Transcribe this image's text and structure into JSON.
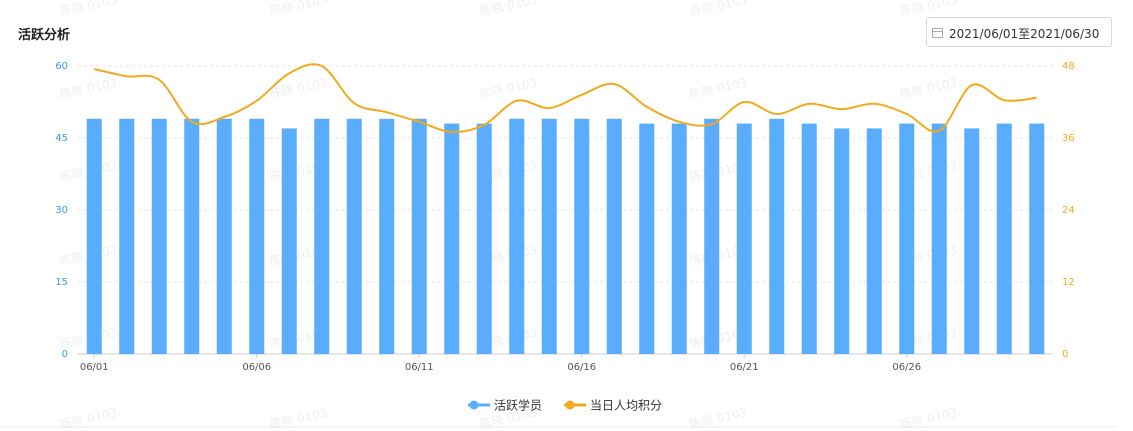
{
  "chart_data": {
    "type": "bar",
    "title": "活跃分析",
    "categories": [
      "06/01",
      null,
      null,
      null,
      null,
      "06/06",
      null,
      null,
      null,
      null,
      "06/11",
      null,
      null,
      null,
      null,
      "06/16",
      null,
      null,
      null,
      null,
      "06/21",
      null,
      null,
      null,
      null,
      "06/26",
      null,
      null,
      null,
      null
    ],
    "series": [
      {
        "name": "活跃学员",
        "type": "bar",
        "color": "#5aacfc",
        "values": [
          49,
          49,
          49,
          49,
          49,
          49,
          47,
          49,
          49,
          49,
          49,
          48,
          48,
          49,
          49,
          49,
          49,
          48,
          48,
          49,
          48,
          49,
          48,
          47,
          47,
          48,
          48,
          47,
          48,
          48
        ]
      },
      {
        "name": "当日人均积分",
        "type": "line",
        "axis": "y2",
        "color": "#f2a91d",
        "values": [
          47.5,
          46.3,
          45.7,
          38.7,
          39.5,
          42.2,
          46.8,
          48,
          41.8,
          40.3,
          38.7,
          37,
          38.2,
          42.2,
          41,
          43.2,
          45,
          41.2,
          38.7,
          38.3,
          42,
          40,
          41.7,
          40.8,
          41.7,
          40,
          37.2,
          44.8,
          42.3,
          42.7
        ]
      }
    ],
    "ylim": [
      0,
      60
    ],
    "yticks": [
      0,
      15,
      30,
      45,
      60
    ],
    "ytick_color": "#3a9be8",
    "y2lim": [
      0,
      48
    ],
    "y2ticks": [
      0,
      12,
      24,
      36,
      48
    ],
    "y2tick_color": "#f2a91d",
    "grid": true,
    "legend": "bottom"
  },
  "date_range": "2021/06/01至2021/06/30",
  "watermark": "陈晓 0103"
}
